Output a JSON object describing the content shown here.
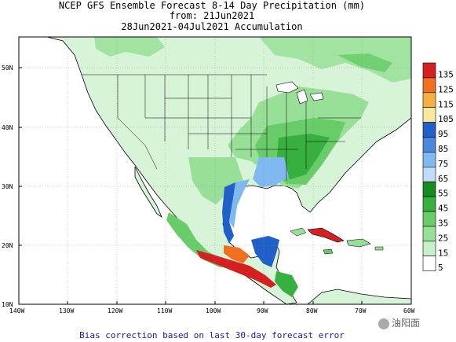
{
  "title": {
    "line1": "NCEP GFS Ensemble Forecast 8-14 Day Precipitation (mm)",
    "line2": "from: 21Jun2021",
    "line3": "28Jun2021-04Jul2021 Accumulation"
  },
  "axes": {
    "lat_labels": [
      "50N",
      "40N",
      "30N",
      "20N",
      "10N"
    ],
    "lon_labels": [
      "140W",
      "130W",
      "120W",
      "110W",
      "100W",
      "90W",
      "80W",
      "70W",
      "60W"
    ]
  },
  "colorbar": {
    "labels": [
      "135",
      "125",
      "115",
      "105",
      "95",
      "85",
      "75",
      "65",
      "55",
      "45",
      "35",
      "25",
      "15",
      "5"
    ],
    "colors": [
      "#d42020",
      "#f07020",
      "#f5b040",
      "#f8e8a0",
      "#2060c8",
      "#4a88e0",
      "#80b8f0",
      "#c0dcf8",
      "#148c20",
      "#38b040",
      "#68cc68",
      "#98e098",
      "#c8f0c8",
      "#ffffff"
    ]
  },
  "footer": "Bias correction based on last 30-day forecast error",
  "watermark": "油阳面"
}
